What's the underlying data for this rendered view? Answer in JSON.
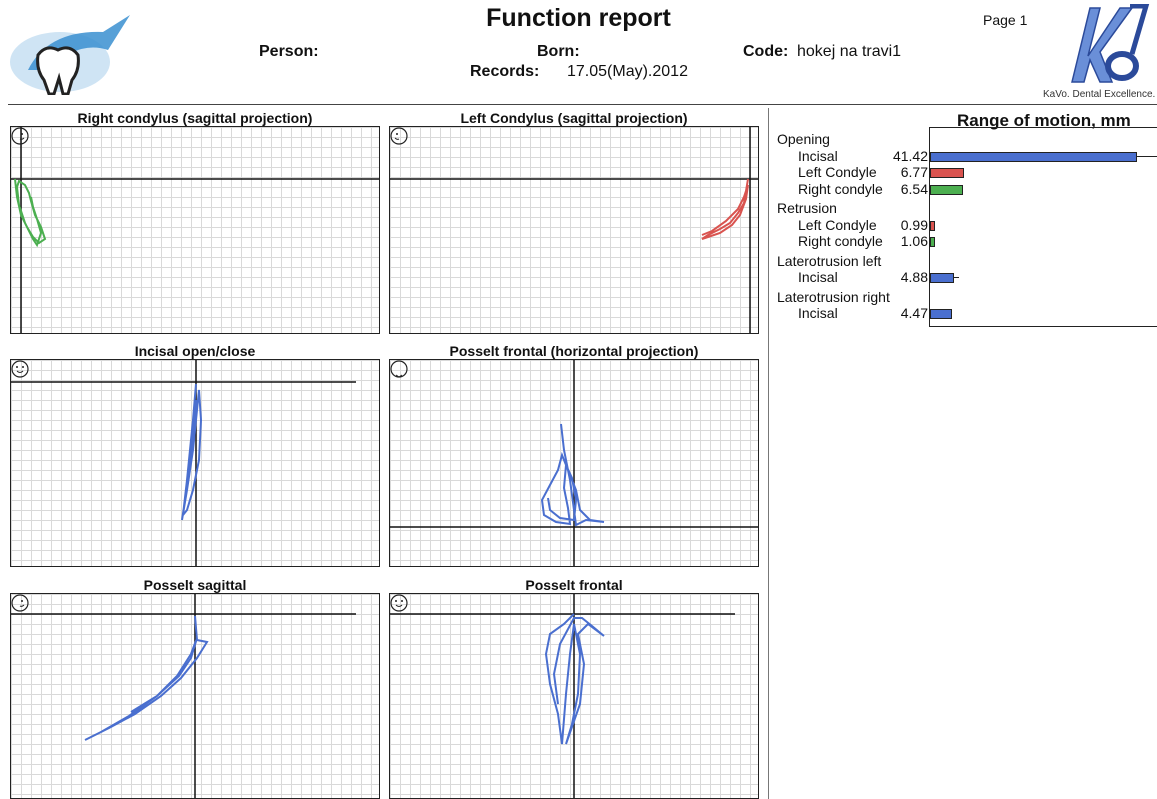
{
  "header": {
    "title": "Function report",
    "page": "Page 1",
    "person_label": "Person:",
    "born_label": "Born:",
    "records_label": "Records:",
    "records_value": "17.05(May).2012",
    "code_label": "Code:",
    "code_value": "hokej na travi1",
    "brand_tagline": "KaVo. Dental Excellence."
  },
  "plots": [
    {
      "title": "Right condylus (sagittal projection)",
      "face": "profile",
      "color": "#4caf50"
    },
    {
      "title": "Left Condylus (sagittal projection)",
      "face": "profile",
      "color": "#d9534f"
    },
    {
      "title": "Incisal open/close",
      "face": "frontal",
      "color": "#4a6fcf"
    },
    {
      "title": "Posselt frontal (horizontal projection)",
      "face": "top",
      "color": "#4a6fcf"
    },
    {
      "title": "Posselt sagittal",
      "face": "profile",
      "color": "#4a6fcf"
    },
    {
      "title": "Posselt frontal",
      "face": "frontal",
      "color": "#4a6fcf"
    }
  ],
  "range_of_motion": {
    "title": "Range of motion, mm",
    "max": 50,
    "groups": [
      {
        "name": "Opening",
        "items": [
          {
            "label": "Incisal",
            "value": 41.42,
            "color": "#4a6fcf",
            "display": "41.42",
            "error": true
          },
          {
            "label": "Left Condyle",
            "value": 6.77,
            "color": "#d9534f",
            "display": "6.77",
            "error": false
          },
          {
            "label": "Right condyle",
            "value": 6.54,
            "color": "#4caf50",
            "display": "6.54",
            "error": false
          }
        ]
      },
      {
        "name": "Retrusion",
        "items": [
          {
            "label": "Left Condyle",
            "value": 0.99,
            "color": "#d9534f",
            "display": "0.99",
            "error": false
          },
          {
            "label": "Right condyle",
            "value": 1.06,
            "color": "#4caf50",
            "display": "1.06",
            "error": false
          }
        ]
      },
      {
        "name": "Laterotrusion left",
        "items": [
          {
            "label": "Incisal",
            "value": 4.88,
            "color": "#4a6fcf",
            "display": "4.88",
            "error": true
          }
        ]
      },
      {
        "name": "Laterotrusion right",
        "items": [
          {
            "label": "Incisal",
            "value": 4.47,
            "color": "#4a6fcf",
            "display": "4.47",
            "error": false
          }
        ]
      }
    ]
  }
}
